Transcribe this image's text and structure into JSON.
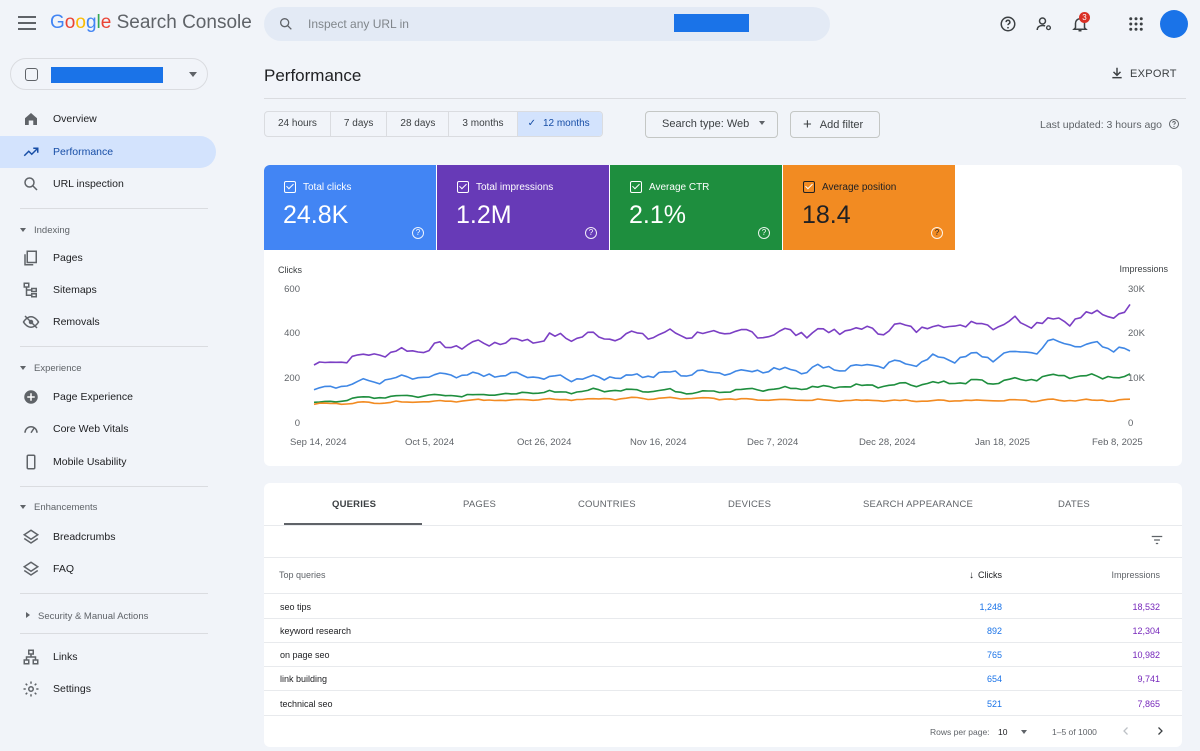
{
  "app": {
    "logo_google": "Google",
    "logo_product": "Search Console"
  },
  "search": {
    "placeholder": "Inspect any URL in"
  },
  "notifications": {
    "count": "3"
  },
  "sidebar": {
    "items": [
      {
        "label": "Overview",
        "icon": "home-icon"
      },
      {
        "label": "Performance",
        "icon": "trending-up-icon",
        "active": true
      },
      {
        "label": "URL inspection",
        "icon": "search-icon"
      }
    ],
    "sections": [
      {
        "title": "Indexing",
        "items": [
          "Pages",
          "Sitemaps",
          "Removals"
        ]
      },
      {
        "title": "Experience",
        "items": [
          "Page Experience",
          "Core Web Vitals",
          "Mobile Usability"
        ]
      },
      {
        "title": "Enhancements",
        "items": [
          "Breadcrumbs",
          "FAQ"
        ]
      },
      {
        "title": "Security & Manual Actions",
        "collapsed": true
      }
    ],
    "bottom_items": [
      "Links",
      "Settings"
    ]
  },
  "header": {
    "title": "Performance",
    "export_label": "EXPORT"
  },
  "filters": {
    "date_ranges": [
      "24 hours",
      "7 days",
      "28 days",
      "3 months",
      "12 months"
    ],
    "selected_range": "12 months",
    "search_type": "Search type: Web",
    "add_filter": "Add filter",
    "last_updated": "Last updated: 3 hours ago"
  },
  "metrics": [
    {
      "label": "Total clicks",
      "value": "24.8K",
      "color": "#4285f4"
    },
    {
      "label": "Total impressions",
      "value": "1.2M",
      "color": "#673ab7"
    },
    {
      "label": "Average CTR",
      "value": "2.1%",
      "color": "#1e8e3e"
    },
    {
      "label": "Average position",
      "value": "18.4",
      "color": "#f28b22"
    }
  ],
  "chart": {
    "left_axis_title": "Clicks",
    "right_axis_title": "Impressions",
    "left_ticks": [
      "600",
      "400",
      "200",
      "0"
    ],
    "right_ticks": [
      "30K",
      "20K",
      "10K",
      "0"
    ],
    "x_ticks": [
      "Sep 14, 2024",
      "Oct 5, 2024",
      "Oct 26, 2024",
      "Nov 16, 2024",
      "Dec 7, 2024",
      "Dec 28, 2024",
      "Jan 18, 2025",
      "Feb 8, 2025"
    ]
  },
  "chart_data": {
    "type": "line",
    "x_range": [
      "Sep 14, 2024",
      "Feb 8, 2025"
    ],
    "ylim_left": [
      0,
      600
    ],
    "ylim_right": [
      0,
      30000
    ],
    "series": [
      {
        "color": "#7b3fc4",
        "axis": "right",
        "anchors": [
          13000,
          15500,
          17000,
          18200,
          19300,
          19600,
          20000,
          20000,
          20400,
          21000,
          21800,
          22500,
          23300,
          25000
        ]
      },
      {
        "color": "#3f87e5",
        "axis": "left",
        "anchors": [
          155,
          190,
          210,
          215,
          200,
          210,
          225,
          235,
          245,
          255,
          290,
          300,
          365,
          320
        ]
      },
      {
        "color": "#1e8e3e",
        "axis": "left",
        "anchors": [
          90,
          118,
          125,
          128,
          140,
          150,
          140,
          148,
          160,
          170,
          180,
          185,
          215,
          205
        ]
      },
      {
        "color": "#f28b22",
        "axis": "left",
        "anchors": [
          85,
          92,
          98,
          103,
          105,
          110,
          110,
          106,
          104,
          100,
          100,
          100,
          102,
          102
        ]
      }
    ]
  },
  "table": {
    "tabs": [
      "QUERIES",
      "PAGES",
      "COUNTRIES",
      "DEVICES",
      "SEARCH APPEARANCE",
      "DATES"
    ],
    "columns": {
      "query": "Top queries",
      "clicks": "Clicks",
      "impressions": "Impressions"
    },
    "rows": [
      {
        "query": "seo tips",
        "clicks": "1,248",
        "impressions": "18,532"
      },
      {
        "query": "keyword research",
        "clicks": "892",
        "impressions": "12,304"
      },
      {
        "query": "on page seo",
        "clicks": "765",
        "impressions": "10,982"
      },
      {
        "query": "link building",
        "clicks": "654",
        "impressions": "9,741"
      },
      {
        "query": "technical seo",
        "clicks": "521",
        "impressions": "7,865"
      }
    ],
    "footer": {
      "rows_per_page_label": "Rows per page:",
      "rows_per_page": "10",
      "range": "1–5 of 1000"
    }
  }
}
